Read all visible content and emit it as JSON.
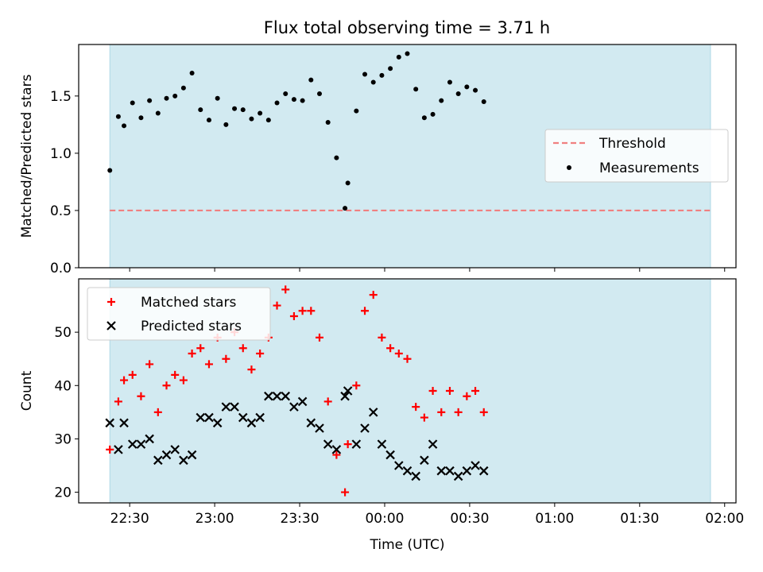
{
  "figure": {
    "title": "Flux total observing time = 3.71 h"
  },
  "chart_data": [
    {
      "type": "scatter",
      "panel": "top",
      "title": "Flux total observing time = 3.71 h",
      "ylabel": "Matched/Predicted stars",
      "xlabel": "",
      "x_unit": "time (UTC)",
      "xlim": [
        "22:12",
        "02:04"
      ],
      "ylim": [
        0,
        1.95
      ],
      "yticks": [
        0.0,
        0.5,
        1.0,
        1.5
      ],
      "ytick_labels": [
        "0.0",
        "0.5",
        "1.0",
        "1.5"
      ],
      "xticks": [
        "22:30",
        "23:00",
        "23:30",
        "00:00",
        "00:30",
        "01:00",
        "01:30",
        "02:00"
      ],
      "shaded_span": {
        "from": "22:23",
        "to": "01:55",
        "color": "#add8e6"
      },
      "grid": false,
      "legend_position": "center-right",
      "legend": [
        {
          "label": "Threshold",
          "style": "dashed-line",
          "color": "#f08080"
        },
        {
          "label": "Measurements",
          "style": "dot",
          "color": "#000000"
        }
      ],
      "threshold": {
        "name": "Threshold",
        "y": 0.5,
        "from": "22:23",
        "to": "01:55",
        "color": "#f08080"
      },
      "series": [
        {
          "name": "Measurements",
          "marker": "dot",
          "color": "#000000",
          "points": [
            {
              "t": "22:23",
              "y": 0.85
            },
            {
              "t": "22:26",
              "y": 1.32
            },
            {
              "t": "22:28",
              "y": 1.24
            },
            {
              "t": "22:31",
              "y": 1.44
            },
            {
              "t": "22:34",
              "y": 1.31
            },
            {
              "t": "22:37",
              "y": 1.46
            },
            {
              "t": "22:40",
              "y": 1.35
            },
            {
              "t": "22:43",
              "y": 1.48
            },
            {
              "t": "22:46",
              "y": 1.5
            },
            {
              "t": "22:49",
              "y": 1.57
            },
            {
              "t": "22:52",
              "y": 1.7
            },
            {
              "t": "22:55",
              "y": 1.38
            },
            {
              "t": "22:58",
              "y": 1.29
            },
            {
              "t": "23:01",
              "y": 1.48
            },
            {
              "t": "23:04",
              "y": 1.25
            },
            {
              "t": "23:07",
              "y": 1.39
            },
            {
              "t": "23:10",
              "y": 1.38
            },
            {
              "t": "23:13",
              "y": 1.3
            },
            {
              "t": "23:16",
              "y": 1.35
            },
            {
              "t": "23:19",
              "y": 1.29
            },
            {
              "t": "23:22",
              "y": 1.44
            },
            {
              "t": "23:25",
              "y": 1.52
            },
            {
              "t": "23:28",
              "y": 1.47
            },
            {
              "t": "23:31",
              "y": 1.46
            },
            {
              "t": "23:34",
              "y": 1.64
            },
            {
              "t": "23:37",
              "y": 1.52
            },
            {
              "t": "23:40",
              "y": 1.27
            },
            {
              "t": "23:43",
              "y": 0.96
            },
            {
              "t": "23:46",
              "y": 0.52
            },
            {
              "t": "23:47",
              "y": 0.74
            },
            {
              "t": "23:50",
              "y": 1.37
            },
            {
              "t": "23:53",
              "y": 1.69
            },
            {
              "t": "23:56",
              "y": 1.62
            },
            {
              "t": "23:59",
              "y": 1.68
            },
            {
              "t": "00:02",
              "y": 1.74
            },
            {
              "t": "00:05",
              "y": 1.84
            },
            {
              "t": "00:08",
              "y": 1.87
            },
            {
              "t": "00:11",
              "y": 1.56
            },
            {
              "t": "00:14",
              "y": 1.31
            },
            {
              "t": "00:17",
              "y": 1.34
            },
            {
              "t": "00:20",
              "y": 1.46
            },
            {
              "t": "00:23",
              "y": 1.62
            },
            {
              "t": "00:26",
              "y": 1.52
            },
            {
              "t": "00:29",
              "y": 1.58
            },
            {
              "t": "00:32",
              "y": 1.55
            },
            {
              "t": "00:35",
              "y": 1.45
            }
          ]
        }
      ]
    },
    {
      "type": "scatter",
      "panel": "bottom",
      "title": "",
      "ylabel": "Count",
      "xlabel": "Time (UTC)",
      "xlim": [
        "22:12",
        "02:04"
      ],
      "ylim": [
        18,
        60
      ],
      "yticks": [
        20,
        30,
        40,
        50
      ],
      "ytick_labels": [
        "20",
        "30",
        "40",
        "50"
      ],
      "xticks": [
        "22:30",
        "23:00",
        "23:30",
        "00:00",
        "00:30",
        "01:00",
        "01:30",
        "02:00"
      ],
      "xtick_labels": [
        "22:30",
        "23:00",
        "23:30",
        "00:00",
        "00:30",
        "01:00",
        "01:30",
        "02:00"
      ],
      "shaded_span": {
        "from": "22:23",
        "to": "01:55",
        "color": "#add8e6"
      },
      "grid": false,
      "legend_position": "top-left",
      "series": [
        {
          "name": "Matched stars",
          "marker": "plus",
          "color": "#ff0000",
          "points": [
            {
              "t": "22:23",
              "y": 28
            },
            {
              "t": "22:26",
              "y": 37
            },
            {
              "t": "22:28",
              "y": 41
            },
            {
              "t": "22:31",
              "y": 42
            },
            {
              "t": "22:34",
              "y": 38
            },
            {
              "t": "22:37",
              "y": 44
            },
            {
              "t": "22:40",
              "y": 35
            },
            {
              "t": "22:43",
              "y": 40
            },
            {
              "t": "22:46",
              "y": 42
            },
            {
              "t": "22:49",
              "y": 41
            },
            {
              "t": "22:52",
              "y": 46
            },
            {
              "t": "22:55",
              "y": 47
            },
            {
              "t": "22:58",
              "y": 44
            },
            {
              "t": "23:01",
              "y": 49
            },
            {
              "t": "23:04",
              "y": 45
            },
            {
              "t": "23:07",
              "y": 50
            },
            {
              "t": "23:10",
              "y": 47
            },
            {
              "t": "23:13",
              "y": 43
            },
            {
              "t": "23:16",
              "y": 46
            },
            {
              "t": "23:19",
              "y": 49
            },
            {
              "t": "23:22",
              "y": 55
            },
            {
              "t": "23:25",
              "y": 58
            },
            {
              "t": "23:28",
              "y": 53
            },
            {
              "t": "23:31",
              "y": 54
            },
            {
              "t": "23:34",
              "y": 54
            },
            {
              "t": "23:37",
              "y": 49
            },
            {
              "t": "23:40",
              "y": 37
            },
            {
              "t": "23:43",
              "y": 27
            },
            {
              "t": "23:46",
              "y": 20
            },
            {
              "t": "23:47",
              "y": 29
            },
            {
              "t": "23:50",
              "y": 40
            },
            {
              "t": "23:53",
              "y": 54
            },
            {
              "t": "23:56",
              "y": 57
            },
            {
              "t": "23:59",
              "y": 49
            },
            {
              "t": "00:02",
              "y": 47
            },
            {
              "t": "00:05",
              "y": 46
            },
            {
              "t": "00:08",
              "y": 45
            },
            {
              "t": "00:11",
              "y": 36
            },
            {
              "t": "00:14",
              "y": 34
            },
            {
              "t": "00:17",
              "y": 39
            },
            {
              "t": "00:20",
              "y": 35
            },
            {
              "t": "00:23",
              "y": 39
            },
            {
              "t": "00:26",
              "y": 35
            },
            {
              "t": "00:29",
              "y": 38
            },
            {
              "t": "00:32",
              "y": 39
            },
            {
              "t": "00:35",
              "y": 35
            }
          ]
        },
        {
          "name": "Predicted stars",
          "marker": "x",
          "color": "#000000",
          "points": [
            {
              "t": "22:23",
              "y": 33
            },
            {
              "t": "22:26",
              "y": 28
            },
            {
              "t": "22:28",
              "y": 33
            },
            {
              "t": "22:31",
              "y": 29
            },
            {
              "t": "22:34",
              "y": 29
            },
            {
              "t": "22:37",
              "y": 30
            },
            {
              "t": "22:40",
              "y": 26
            },
            {
              "t": "22:43",
              "y": 27
            },
            {
              "t": "22:46",
              "y": 28
            },
            {
              "t": "22:49",
              "y": 26
            },
            {
              "t": "22:52",
              "y": 27
            },
            {
              "t": "22:55",
              "y": 34
            },
            {
              "t": "22:58",
              "y": 34
            },
            {
              "t": "23:01",
              "y": 33
            },
            {
              "t": "23:04",
              "y": 36
            },
            {
              "t": "23:07",
              "y": 36
            },
            {
              "t": "23:10",
              "y": 34
            },
            {
              "t": "23:13",
              "y": 33
            },
            {
              "t": "23:16",
              "y": 34
            },
            {
              "t": "23:19",
              "y": 38
            },
            {
              "t": "23:22",
              "y": 38
            },
            {
              "t": "23:25",
              "y": 38
            },
            {
              "t": "23:28",
              "y": 36
            },
            {
              "t": "23:31",
              "y": 37
            },
            {
              "t": "23:34",
              "y": 33
            },
            {
              "t": "23:37",
              "y": 32
            },
            {
              "t": "23:40",
              "y": 29
            },
            {
              "t": "23:43",
              "y": 28
            },
            {
              "t": "23:46",
              "y": 38
            },
            {
              "t": "23:47",
              "y": 39
            },
            {
              "t": "23:50",
              "y": 29
            },
            {
              "t": "23:53",
              "y": 32
            },
            {
              "t": "23:56",
              "y": 35
            },
            {
              "t": "23:59",
              "y": 29
            },
            {
              "t": "00:02",
              "y": 27
            },
            {
              "t": "00:05",
              "y": 25
            },
            {
              "t": "00:08",
              "y": 24
            },
            {
              "t": "00:11",
              "y": 23
            },
            {
              "t": "00:14",
              "y": 26
            },
            {
              "t": "00:17",
              "y": 29
            },
            {
              "t": "00:20",
              "y": 24
            },
            {
              "t": "00:23",
              "y": 24
            },
            {
              "t": "00:26",
              "y": 23
            },
            {
              "t": "00:29",
              "y": 24
            },
            {
              "t": "00:32",
              "y": 25
            },
            {
              "t": "00:35",
              "y": 24
            }
          ]
        }
      ]
    }
  ]
}
